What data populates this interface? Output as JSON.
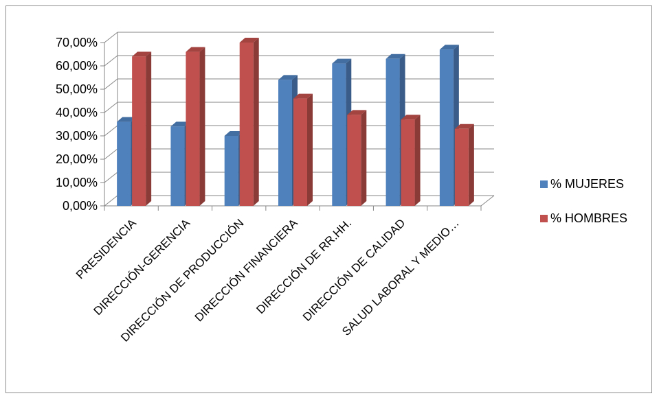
{
  "chart_data": {
    "type": "bar",
    "style": "3d-clustered-column",
    "categories": [
      "PRESIDENCIA",
      "DIRECCIÓN-GERENCIA",
      "DIRECCIÓN DE PRODUCCIÓN",
      "DIRECCIÓN FINANCIERA",
      "DIRECCIÓN DE RR.HH.",
      "DIRECCIÓN DE CALIDAD",
      "SALUD LABORAL Y MEDIO…"
    ],
    "series": [
      {
        "name": "% MUJERES",
        "color": "#4f81bd",
        "values": [
          0.36,
          0.34,
          0.3,
          0.54,
          0.61,
          0.63,
          0.67
        ]
      },
      {
        "name": "% HOMBRES",
        "color": "#c0504d",
        "values": [
          0.64,
          0.66,
          0.7,
          0.46,
          0.39,
          0.37,
          0.33
        ]
      }
    ],
    "y_ticks": [
      "0,00%",
      "10,00%",
      "20,00%",
      "30,00%",
      "40,00%",
      "50,00%",
      "60,00%",
      "70,00%"
    ],
    "ylim": [
      0,
      0.7
    ],
    "grid": true,
    "legend_position": "right",
    "title": "",
    "xlabel": "",
    "ylabel": ""
  }
}
